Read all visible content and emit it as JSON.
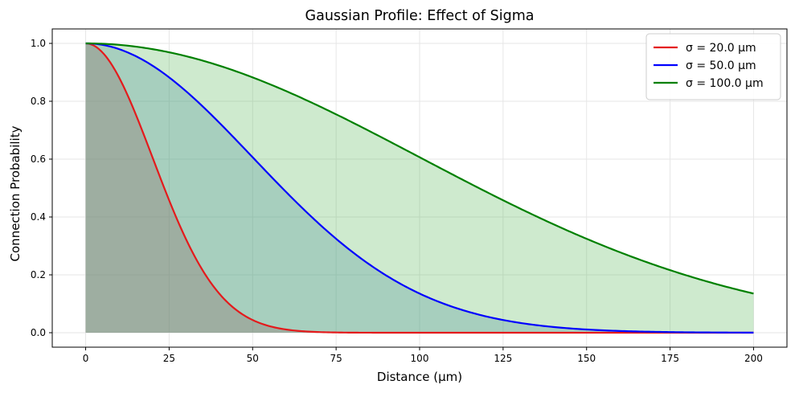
{
  "chart_data": {
    "type": "area",
    "title": "Gaussian Profile: Effect of Sigma",
    "xlabel": "Distance (µm)",
    "ylabel": "Connection Probability",
    "xlim": [
      -10,
      210
    ],
    "ylim": [
      -0.05,
      1.05
    ],
    "xticks": [
      "0",
      "25",
      "50",
      "75",
      "100",
      "125",
      "150",
      "175",
      "200"
    ],
    "yticks": [
      "0.0",
      "0.2",
      "0.4",
      "0.6",
      "0.8",
      "1.0"
    ],
    "grid": true,
    "legend_position": "top-right",
    "x_range": [
      0,
      200
    ],
    "series": [
      {
        "name": "σ = 20.0 µm",
        "sigma": 20.0,
        "color": "#e41a1c",
        "fill": "#c81e3e",
        "values_at": [
          0,
          10,
          20,
          30,
          40,
          50,
          60,
          75,
          100,
          150,
          200
        ],
        "values": [
          1.0,
          0.88,
          0.61,
          0.32,
          0.14,
          0.04,
          0.01,
          0.0,
          0.0,
          0.0,
          0.0
        ]
      },
      {
        "name": "σ = 50.0 µm",
        "sigma": 50.0,
        "color": "#0000ff",
        "fill": "#4682b4",
        "values_at": [
          0,
          25,
          50,
          75,
          100,
          125,
          150,
          175,
          200
        ],
        "values": [
          1.0,
          0.88,
          0.61,
          0.32,
          0.14,
          0.04,
          0.01,
          0.0,
          0.0
        ]
      },
      {
        "name": "σ = 100.0 µm",
        "sigma": 100.0,
        "color": "#008000",
        "fill": "#5cb85c",
        "values_at": [
          0,
          25,
          50,
          75,
          100,
          125,
          150,
          175,
          200
        ],
        "values": [
          1.0,
          0.97,
          0.88,
          0.75,
          0.61,
          0.46,
          0.32,
          0.22,
          0.14
        ]
      }
    ]
  },
  "colors": {
    "grid": "#e6e6e6",
    "axes": "#000000",
    "legend_border": "#cccccc"
  }
}
